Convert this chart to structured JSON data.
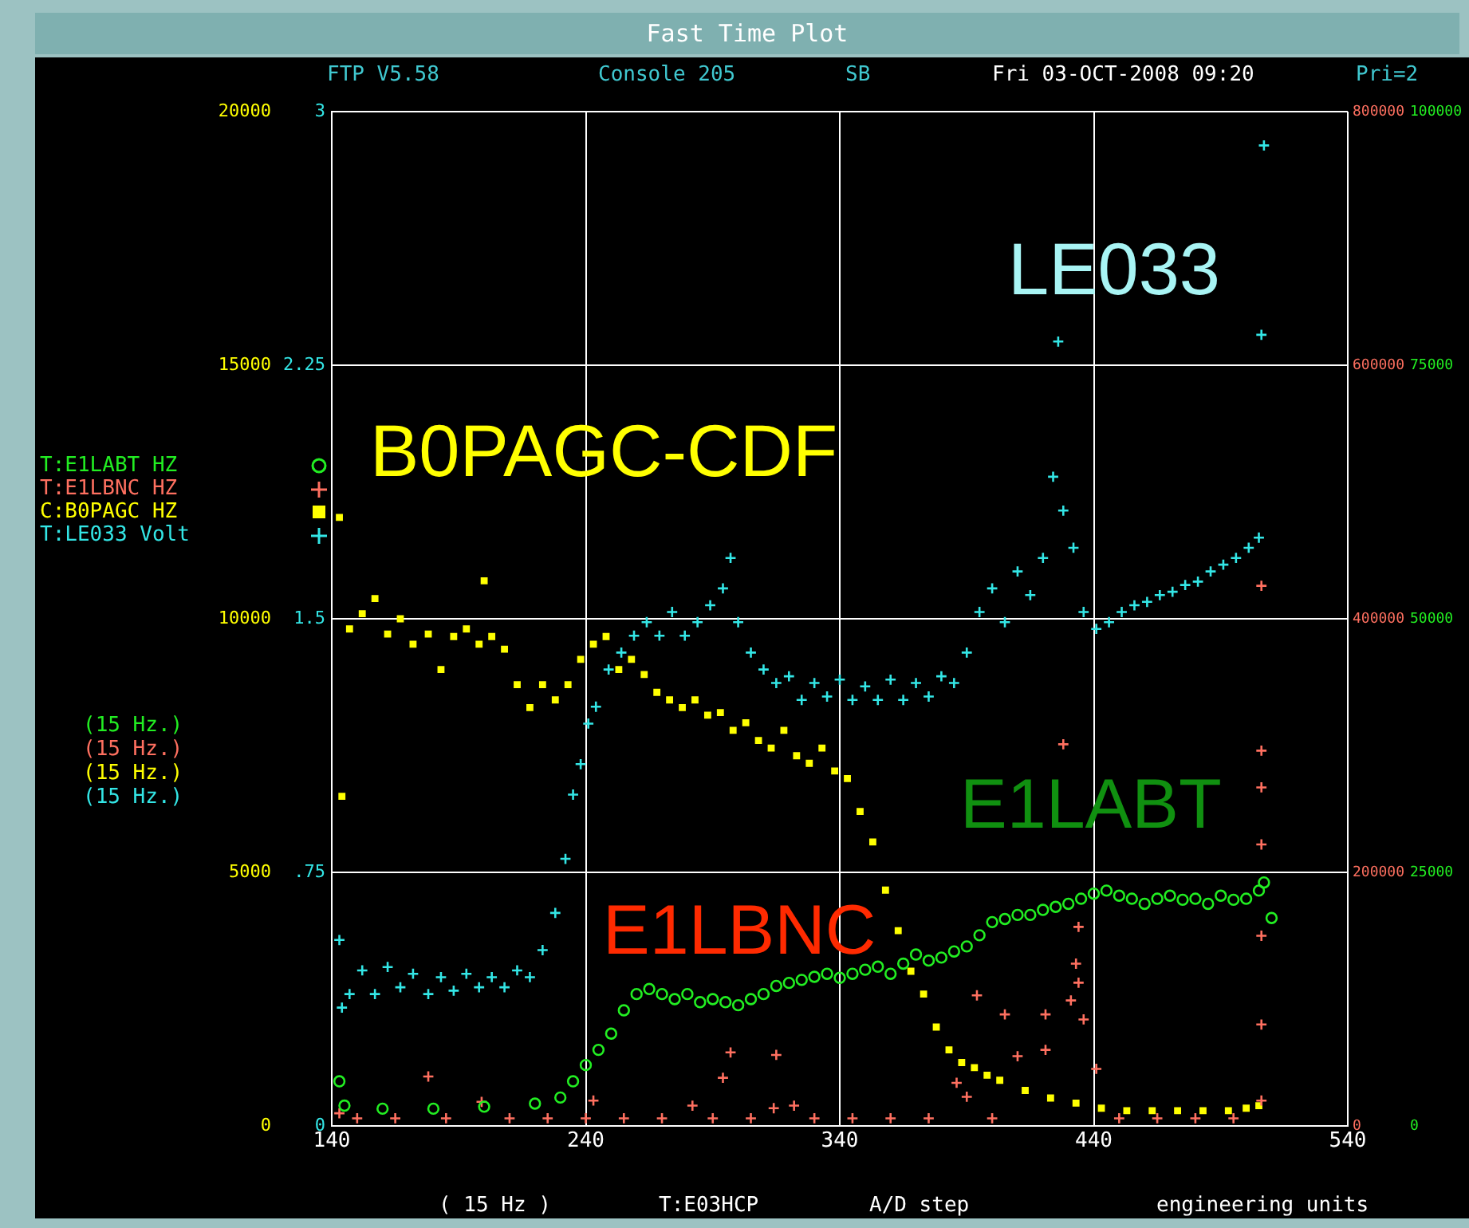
{
  "chart_data": [
    {
      "type": "scatter",
      "title": "Fast Time Plot",
      "annotations": [
        "FTP V5.58",
        "Console 205",
        "SB",
        "Fri 03-OCT-2008 09:20",
        "Pri=2",
        "B0PAGC-CDF",
        "E1LBNC",
        "E1LABT",
        "(15 Hz.)",
        "(15 Hz.)",
        "(15 Hz.)",
        "( 15 Hz )",
        "T:E03HCP",
        "A/D step",
        "engineering units"
      ],
      "xlim": [
        140,
        540
      ],
      "xticks": [
        140,
        240,
        340,
        440,
        540
      ],
      "ylim": [
        0,
        100000
      ],
      "yticks": [
        0,
        25000,
        50000,
        75000,
        100000
      ],
      "y2lim": [
        0,
        800000
      ],
      "y2ticks": [
        0,
        200000,
        400000,
        600000,
        800000
      ],
      "y3lim": [
        0,
        20000
      ],
      "y3ticks": [
        0,
        5000,
        10000,
        15000,
        20000
      ],
      "grid": true,
      "legend": "left",
      "series": [
        {
          "name": "T:E1LABT HZ",
          "color": "#22ee22",
          "marker": "circle",
          "x": [
            143,
            145,
            160,
            180,
            200,
            220,
            230,
            235,
            240,
            245,
            250,
            255,
            260,
            265,
            270,
            275,
            280,
            285,
            290,
            295,
            300,
            305,
            310,
            315,
            320,
            325,
            330,
            335,
            340,
            345,
            350,
            355,
            360,
            365,
            370,
            375,
            380,
            385,
            390,
            395,
            400,
            405,
            410,
            415,
            420,
            425,
            430,
            435,
            440,
            445,
            450,
            455,
            460,
            465,
            470,
            475,
            480,
            485,
            490,
            495,
            500,
            505,
            507,
            510
          ],
          "values": [
            4400,
            2000,
            1700,
            1700,
            1900,
            2200,
            2800,
            4400,
            6000,
            7500,
            9100,
            11400,
            13000,
            13500,
            13000,
            12500,
            13000,
            12200,
            12500,
            12200,
            11900,
            12500,
            13000,
            13800,
            14100,
            14400,
            14700,
            15000,
            14600,
            15000,
            15400,
            15700,
            15000,
            16000,
            16900,
            16300,
            16600,
            17200,
            17700,
            18800,
            20100,
            20400,
            20800,
            20800,
            21300,
            21600,
            21900,
            22400,
            22900,
            23200,
            22700,
            22400,
            21900,
            22400,
            22700,
            22300,
            22400,
            21900,
            22700,
            22300,
            22400,
            23200,
            24000,
            20500
          ]
        },
        {
          "name": "T:E1LBNC HZ",
          "color": "#ff7060",
          "marker": "cross",
          "axis": "y2",
          "x": [
            143,
            150,
            165,
            178,
            185,
            199,
            210,
            225,
            240,
            243,
            255,
            270,
            282,
            290,
            294,
            297,
            305,
            314,
            315,
            322,
            330,
            345,
            360,
            375,
            386,
            390,
            394,
            400,
            405,
            410,
            421,
            421,
            428,
            431,
            433,
            434,
            434,
            436,
            441,
            450,
            465,
            480,
            495,
            506,
            506,
            506,
            506,
            506,
            506,
            506
          ],
          "values": [
            10000,
            6000,
            6000,
            39000,
            6000,
            19000,
            6000,
            6000,
            6000,
            20000,
            6000,
            6000,
            16000,
            6000,
            38000,
            58000,
            6000,
            14000,
            56000,
            16000,
            6000,
            6000,
            6000,
            6000,
            34000,
            23000,
            103000,
            6000,
            88000,
            55000,
            88000,
            60000,
            301000,
            99000,
            128000,
            157000,
            113000,
            84000,
            45000,
            6000,
            6000,
            6000,
            6000,
            426000,
            296000,
            267000,
            222000,
            150000,
            80000,
            20000
          ]
        },
        {
          "name": "C:B0PAGC HZ",
          "color": "#ffff00",
          "marker": "square",
          "axis": "y3",
          "x": [
            143,
            144,
            147,
            152,
            157,
            162,
            167,
            172,
            178,
            183,
            188,
            193,
            198,
            200,
            203,
            208,
            213,
            218,
            223,
            228,
            233,
            238,
            243,
            248,
            253,
            258,
            263,
            268,
            273,
            278,
            283,
            288,
            293,
            298,
            303,
            308,
            313,
            318,
            323,
            328,
            333,
            338,
            343,
            348,
            353,
            358,
            363,
            368,
            373,
            378,
            383,
            388,
            393,
            398,
            403,
            413,
            423,
            433,
            443,
            453,
            463,
            473,
            483,
            493,
            500,
            505
          ],
          "values": [
            12000,
            6500,
            9800,
            10100,
            10400,
            9700,
            10000,
            9500,
            9700,
            9000,
            9650,
            9800,
            9500,
            10750,
            9650,
            9400,
            8700,
            8250,
            8700,
            8400,
            8700,
            9200,
            9500,
            9650,
            9000,
            9200,
            8900,
            8550,
            8400,
            8250,
            8400,
            8100,
            8150,
            7800,
            7950,
            7600,
            7450,
            7800,
            7300,
            7150,
            7450,
            7000,
            6850,
            6200,
            5600,
            4650,
            3850,
            3050,
            2600,
            1950,
            1500,
            1250,
            1150,
            1000,
            900,
            700,
            550,
            450,
            350,
            300,
            300,
            300,
            300,
            300,
            350,
            400
          ]
        }
      ]
    },
    {
      "type": "scatter",
      "annotations": [
        "LE033",
        "(15 Hz.)"
      ],
      "xlim": [
        140,
        540
      ],
      "xticks": [
        140,
        240,
        340,
        440,
        540
      ],
      "ylim": [
        0,
        3
      ],
      "yticks": [
        0,
        {
          "value": 0.75,
          "label": ".75"
        },
        1.5,
        2.25,
        3
      ],
      "tick_labels": "y",
      "legend": "left",
      "series": [
        {
          "name": "T:LE033 Volt",
          "color": "#33e6e6",
          "marker": "cross",
          "x": [
            143,
            144,
            147,
            152,
            157,
            162,
            167,
            172,
            178,
            183,
            188,
            193,
            198,
            203,
            208,
            213,
            218,
            223,
            228,
            232,
            235,
            238,
            241,
            244,
            249,
            254,
            259,
            264,
            269,
            274,
            279,
            284,
            289,
            294,
            297,
            300,
            305,
            310,
            315,
            320,
            325,
            330,
            335,
            340,
            345,
            350,
            355,
            360,
            365,
            370,
            375,
            380,
            385,
            390,
            395,
            400,
            405,
            410,
            415,
            420,
            424,
            426,
            428,
            432,
            436,
            441,
            446,
            451,
            456,
            461,
            466,
            471,
            476,
            481,
            486,
            491,
            496,
            501,
            505,
            506,
            507
          ],
          "values": [
            0.55,
            0.35,
            0.39,
            0.46,
            0.39,
            0.47,
            0.41,
            0.45,
            0.39,
            0.44,
            0.4,
            0.45,
            0.41,
            0.44,
            0.41,
            0.46,
            0.44,
            0.52,
            0.63,
            0.79,
            0.98,
            1.07,
            1.19,
            1.24,
            1.35,
            1.4,
            1.45,
            1.49,
            1.45,
            1.52,
            1.45,
            1.49,
            1.54,
            1.59,
            1.68,
            1.49,
            1.4,
            1.35,
            1.31,
            1.33,
            1.26,
            1.31,
            1.27,
            1.32,
            1.26,
            1.3,
            1.26,
            1.32,
            1.26,
            1.31,
            1.27,
            1.33,
            1.31,
            1.4,
            1.52,
            1.59,
            1.49,
            1.64,
            1.57,
            1.68,
            1.92,
            2.32,
            1.82,
            1.71,
            1.52,
            1.47,
            1.49,
            1.52,
            1.54,
            1.55,
            1.57,
            1.58,
            1.6,
            1.61,
            1.64,
            1.66,
            1.68,
            1.71,
            1.74,
            2.34,
            2.9
          ]
        }
      ]
    }
  ]
}
